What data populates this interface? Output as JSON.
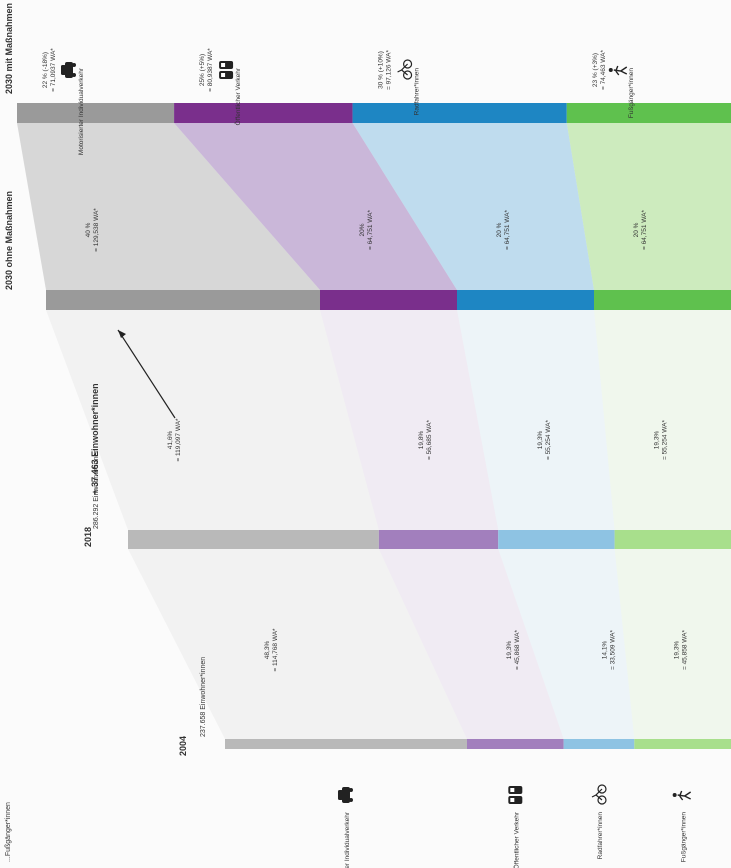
{
  "header_fragment": "...Fußgänger*innen",
  "growth_label": "+ 37.463 Einwohner*innen",
  "chart_data": {
    "type": "alluvial",
    "orientation": "rotated",
    "stages": [
      {
        "name": "2004",
        "subtitle": "237.658 Einwohner*innen"
      },
      {
        "name": "2018",
        "subtitle": "286.292 Einwohner*innen"
      },
      {
        "name": "2030 ohne Maßnahmen",
        "subtitle": ""
      },
      {
        "name": "2030 mit Maßnahmen",
        "subtitle": ""
      }
    ],
    "categories": [
      {
        "key": "miv",
        "label": "Motorisierter Individualverkehr",
        "color": "#b9b9b9",
        "color_2030": "#9a9a9a",
        "icon": "car-icon"
      },
      {
        "key": "oev",
        "label": "Öffentlicher Verkehr",
        "color": "#a27fbd",
        "color_2030": "#7a2f8c",
        "icon": "train-icon"
      },
      {
        "key": "rad",
        "label": "Radfahrer*innen",
        "color": "#8ec3e3",
        "color_2030": "#1e86c3",
        "icon": "bicycle-icon"
      },
      {
        "key": "fuss",
        "label": "Fußgänger*innen",
        "color": "#a8df8c",
        "color_2030": "#5fc14e",
        "icon": "pedestrian-icon"
      }
    ],
    "values": {
      "2004": [
        {
          "pct": 48.3,
          "wa": 114768,
          "line1": "48,3%",
          "line2": "= 114,768 WA*"
        },
        {
          "pct": 19.3,
          "wa": 45868,
          "line1": "19,3%",
          "line2": "= 45,868 WA*"
        },
        {
          "pct": 14.1,
          "wa": 33509,
          "line1": "14,1%",
          "line2": "= 33,509 WA*"
        },
        {
          "pct": 19.3,
          "wa": 45858,
          "line1": "19,3%",
          "line2": "= 45,858 WA*"
        }
      ],
      "2018": [
        {
          "pct": 41.6,
          "wa": 119097,
          "line1": "41,6%",
          "line2": "= 119,097 WA*"
        },
        {
          "pct": 19.8,
          "wa": 56685,
          "line1": "19,8%",
          "line2": "= 56,685 WA*"
        },
        {
          "pct": 19.3,
          "wa": 55254,
          "line1": "19,3%",
          "line2": "= 55,254 WA*"
        },
        {
          "pct": 19.3,
          "wa": 55254,
          "line1": "19,3%",
          "line2": "= 55,254 WA*"
        }
      ],
      "2030 ohne Maßnahmen": [
        {
          "pct": 40,
          "wa": 129538,
          "line1": "40 %",
          "line2": "= 129,538 WA*"
        },
        {
          "pct": 20,
          "wa": 64751,
          "line1": "20%",
          "line2": "= 64,751 WA*"
        },
        {
          "pct": 20,
          "wa": 64751,
          "line1": "20 %",
          "line2": "= 64,751 WA*"
        },
        {
          "pct": 20,
          "wa": 64751,
          "line1": "20 %",
          "line2": "= 64,751 WA*"
        }
      ],
      "2030 mit Maßnahmen": [
        {
          "pct": 22,
          "wa": 71093,
          "line1": "22 % (-18%)",
          "line2": "= 71,0937 WA*"
        },
        {
          "pct": 25,
          "wa": 80938,
          "line1": "25% (+5%)",
          "line2": "= 80,9387 WA*"
        },
        {
          "pct": 30,
          "wa": 97126,
          "line1": "30 % (+10%)",
          "line2": "= 97,126 WA*"
        },
        {
          "pct": 23,
          "wa": 74463,
          "line1": "23 % (+3%)",
          "line2": "= 74,463 WA*"
        }
      ]
    }
  }
}
